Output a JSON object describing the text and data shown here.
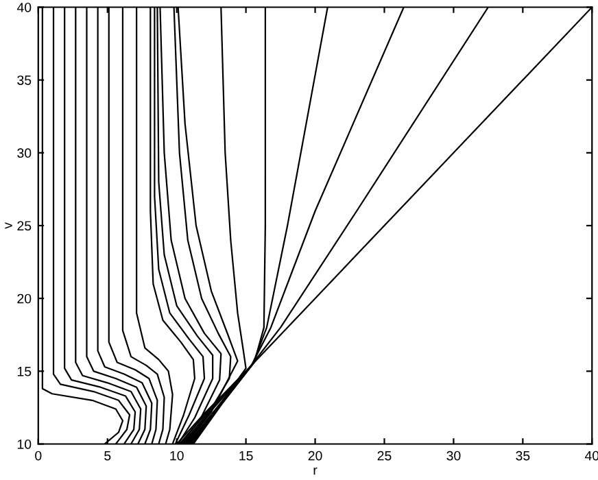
{
  "chart_data": {
    "type": "line",
    "xlabel": "r",
    "ylabel": "v",
    "xlim": [
      0,
      40
    ],
    "ylim": [
      10,
      40
    ],
    "xticks": [
      0,
      5,
      10,
      15,
      20,
      25,
      30,
      35,
      40
    ],
    "yticks": [
      10,
      15,
      20,
      25,
      30,
      35,
      40
    ],
    "grid": false,
    "marker": "none",
    "line_style": "solid",
    "series": [
      {
        "color": "#000000",
        "x": [
          0.3,
          0.3,
          1,
          3.9,
          5.6,
          6.1,
          5.8,
          4.8
        ],
        "values": [
          40,
          13.8,
          13.45,
          13.0,
          12.4,
          11.6,
          10.8,
          10
        ]
      },
      {
        "color": "#000000",
        "x": [
          1.1,
          1.1,
          1.6,
          4,
          5.8,
          6.6,
          6.4,
          5.6
        ],
        "values": [
          40,
          14.8,
          14.1,
          13.6,
          13.0,
          12.0,
          11,
          10
        ]
      },
      {
        "color": "#000000",
        "x": [
          1.9,
          1.9,
          2.4,
          4.5,
          6.3,
          7,
          6.9,
          6.2
        ],
        "values": [
          40,
          15.2,
          14.4,
          13.9,
          13.3,
          12.2,
          11,
          10
        ]
      },
      {
        "color": "#000000",
        "x": [
          2.7,
          2.7,
          3.2,
          5,
          6.7,
          7.4,
          7.3,
          6.7
        ],
        "values": [
          40,
          15.6,
          14.7,
          14.2,
          13.6,
          12.4,
          11,
          10
        ]
      },
      {
        "color": "#000000",
        "x": [
          3.5,
          3.5,
          4,
          5.6,
          7.1,
          7.8,
          7.7,
          7.2
        ],
        "values": [
          40,
          16,
          15,
          14.5,
          13.9,
          12.6,
          11,
          10
        ]
      },
      {
        "color": "#000000",
        "x": [
          4.3,
          4.3,
          4.8,
          6.2,
          7.5,
          8.2,
          8.1,
          7.7
        ],
        "values": [
          40,
          16.4,
          15.3,
          14.8,
          14.2,
          12.8,
          11,
          10
        ]
      },
      {
        "color": "#000000",
        "x": [
          5.1,
          5.1,
          5.7,
          7,
          8,
          8.6,
          8.5,
          8.2
        ],
        "values": [
          40,
          17,
          15.6,
          15.1,
          14.5,
          13,
          11,
          10
        ]
      },
      {
        "color": "#000000",
        "x": [
          6.1,
          6.1,
          6.7,
          7.8,
          8.6,
          9.1,
          9,
          8.7
        ],
        "values": [
          40,
          17.8,
          16,
          15.4,
          14.8,
          13.2,
          11,
          10
        ]
      },
      {
        "color": "#000000",
        "x": [
          7.1,
          7.1,
          7.7,
          8.7,
          9.4,
          9.7,
          9.5,
          9.2
        ],
        "values": [
          40,
          19,
          16.6,
          15.8,
          15,
          13.4,
          11,
          10
        ]
      },
      {
        "color": "#000000",
        "x": [
          8.1,
          8.1,
          8.3,
          9,
          10.3,
          11.2,
          11.3,
          10.5,
          9.7
        ],
        "values": [
          40,
          26,
          21,
          18.5,
          17,
          15.8,
          14.5,
          12,
          10
        ]
      },
      {
        "color": "#000000",
        "x": [
          8.4,
          8.4,
          8.7,
          9.5,
          10.9,
          11.9,
          12,
          10.9,
          9.9
        ],
        "values": [
          40,
          27,
          22,
          19,
          17.2,
          16,
          14.5,
          12,
          10
        ]
      },
      {
        "color": "#000000",
        "x": [
          8.6,
          8.7,
          9.1,
          10,
          11.5,
          12.6,
          12.6,
          11.3,
          10.1
        ],
        "values": [
          40,
          28,
          23,
          19.5,
          17.4,
          16.1,
          14.5,
          11.8,
          10
        ]
      },
      {
        "color": "#000000",
        "x": [
          8.8,
          9.1,
          9.6,
          10.6,
          12,
          13.2,
          13.1,
          11.7,
          10.3
        ],
        "values": [
          40,
          30,
          24,
          20,
          17.6,
          16.2,
          14.4,
          11.7,
          10
        ]
      },
      {
        "color": "#000000",
        "x": [
          9.8,
          10.2,
          10.8,
          11.8,
          13,
          13.9,
          13.8,
          12.1,
          10.5
        ],
        "values": [
          40,
          30,
          24,
          20,
          17.6,
          16,
          14.5,
          11.8,
          10
        ]
      },
      {
        "color": "#000000",
        "x": [
          10.1,
          10.6,
          11.4,
          12.5,
          13.7,
          14.4,
          12.5,
          10.7
        ],
        "values": [
          40,
          32,
          25,
          20.5,
          17.5,
          15.7,
          12.2,
          10
        ]
      },
      {
        "color": "#000000",
        "x": [
          13.2,
          13.5,
          13.9,
          14.4,
          14.8,
          15,
          12.8,
          10.9
        ],
        "values": [
          40,
          30,
          24,
          19,
          16.5,
          15.2,
          12.3,
          10
        ]
      },
      {
        "color": "#000000",
        "x": [
          16.4,
          16.4,
          16.3,
          15.6,
          13.2,
          11.1
        ],
        "values": [
          40,
          25,
          18,
          15.6,
          12.7,
          10
        ]
      },
      {
        "color": "#000000",
        "x": [
          20.9,
          18,
          16.5,
          15.5,
          13.3,
          11.2
        ],
        "values": [
          40,
          25,
          18,
          15.5,
          12.8,
          10
        ]
      },
      {
        "color": "#000000",
        "x": [
          26.4,
          20,
          16.8,
          15.4,
          13.1,
          11
        ],
        "values": [
          40,
          26,
          18,
          15.4,
          12.6,
          10
        ]
      },
      {
        "color": "#000000",
        "x": [
          32.5,
          23,
          17.5,
          15.3,
          12.9,
          10.8
        ],
        "values": [
          40,
          26,
          18,
          15.3,
          12.5,
          10
        ]
      },
      {
        "color": "#000000",
        "x": [
          40,
          30,
          20,
          15.2,
          12.6,
          10.6
        ],
        "values": [
          40,
          30,
          20,
          15.2,
          12.4,
          10
        ]
      },
      {
        "color": "#000000",
        "x": [
          15.1,
          12.4,
          10.4
        ],
        "values": [
          15.1,
          12.3,
          10
        ]
      },
      {
        "color": "#000000",
        "x": [
          15,
          12.2,
          10.2
        ],
        "values": [
          15,
          12.2,
          10
        ]
      },
      {
        "color": "#000000",
        "x": [
          14.9,
          12,
          10
        ],
        "values": [
          14.9,
          12.1,
          10
        ]
      }
    ]
  }
}
